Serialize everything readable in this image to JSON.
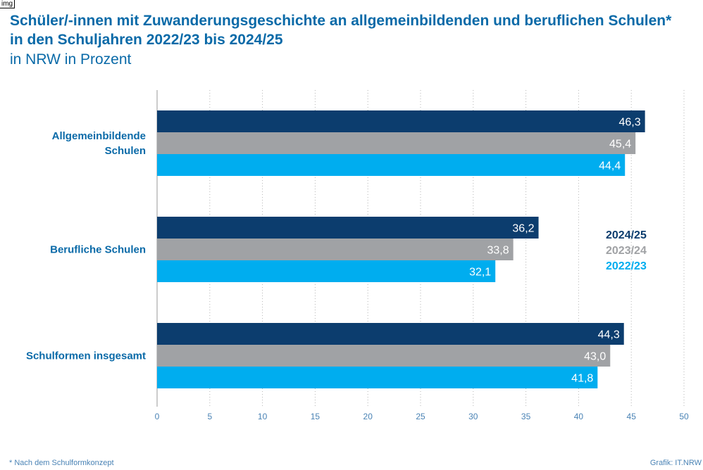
{
  "tag": "img",
  "title": "Schüler/-innen mit Zuwanderungsgeschichte an allgemeinbildenden und beruflichen Schulen* in den Schuljahren 2022/23 bis 2024/25",
  "subtitle": "in NRW in Prozent",
  "footnote": "* Nach dem Schulformkonzept",
  "source": "Grafik: IT.NRW",
  "chart_data": {
    "type": "bar",
    "orientation": "horizontal",
    "categories": [
      "Allgemeinbildende Schulen",
      "Berufliche Schulen",
      "Schulformen insgesamt"
    ],
    "series": [
      {
        "name": "2024/25",
        "color": "#0c3d6e",
        "values": [
          46.3,
          36.2,
          44.3
        ],
        "labels": [
          "46,3",
          "36,2",
          "44,3"
        ]
      },
      {
        "name": "2023/24",
        "color": "#a0a2a5",
        "values": [
          45.4,
          33.8,
          43.0
        ],
        "labels": [
          "45,4",
          "33,8",
          "43,0"
        ]
      },
      {
        "name": "2022/23",
        "color": "#00adef",
        "values": [
          44.4,
          32.1,
          41.8
        ],
        "labels": [
          "44,4",
          "32,1",
          "41,8"
        ]
      }
    ],
    "xlim": [
      0,
      50
    ],
    "xticks": [
      0,
      5,
      10,
      15,
      20,
      25,
      30,
      35,
      40,
      45,
      50
    ],
    "grid": "vertical-dotted",
    "legend_placement": "right"
  }
}
